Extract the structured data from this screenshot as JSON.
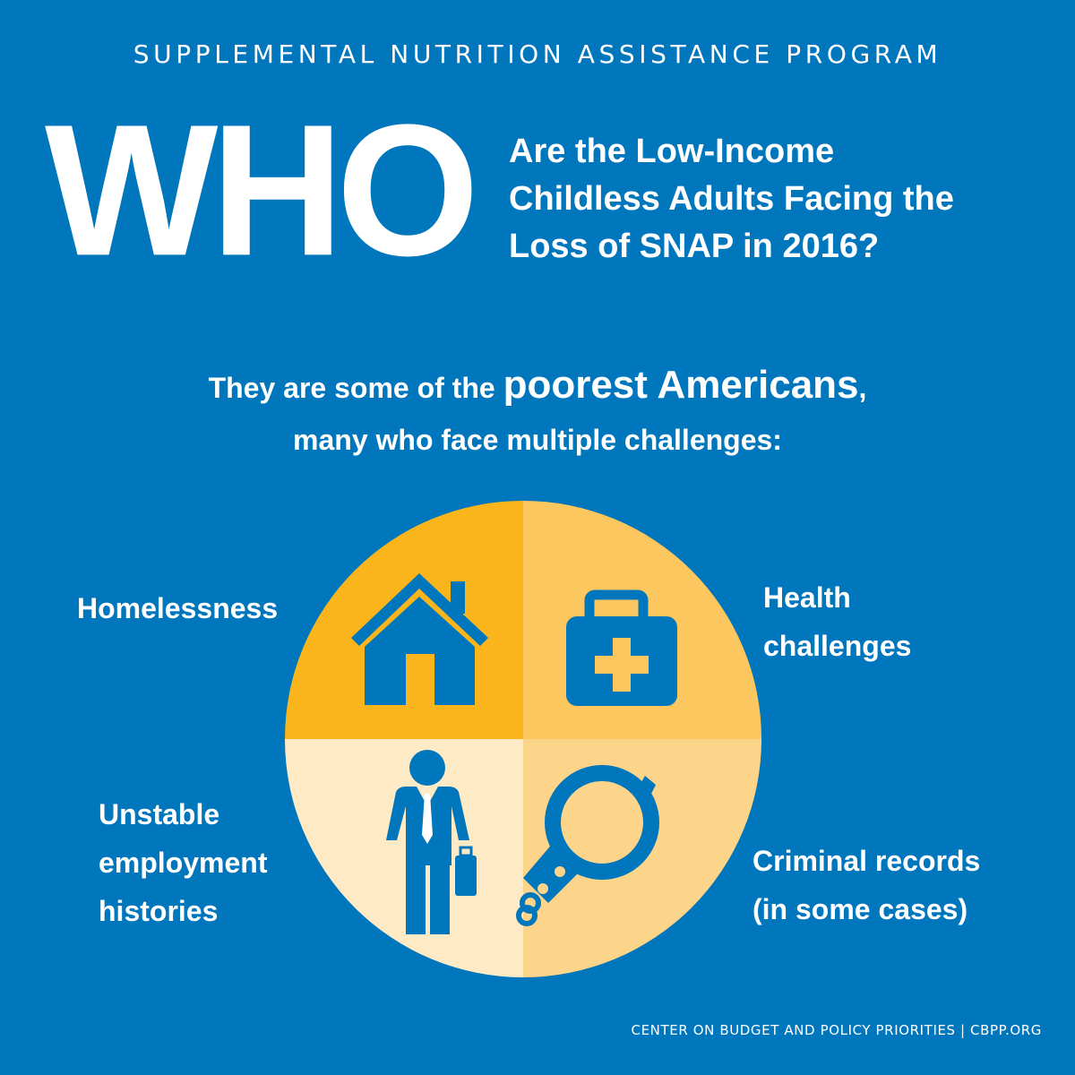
{
  "header": {
    "kicker": "SUPPLEMENTAL NUTRITION ASSISTANCE PROGRAM",
    "big_word": "WHO",
    "question_lines": [
      "Are the Low-Income",
      "Childless Adults Facing the",
      "Loss of SNAP in 2016?"
    ]
  },
  "tagline": {
    "part1": "They are some of the ",
    "emphasis": "poorest Americans",
    "part2": ",",
    "line2": "many who face multiple challenges:"
  },
  "challenges": {
    "homelessness": [
      "Homelessness"
    ],
    "health": [
      "Health",
      "challenges"
    ],
    "employment": [
      "Unstable",
      "employment",
      "histories"
    ],
    "criminal": [
      "Criminal records",
      "(in some cases)"
    ]
  },
  "footer": {
    "credit": "CENTER ON BUDGET AND POLICY PRIORITIES | CBPP.ORG"
  },
  "colors": {
    "background": "#0076bd",
    "quadrant_top_left": "#f9b51b",
    "quadrant_top_right": "#fdc75f",
    "quadrant_bottom_left": "#ffeac6",
    "quadrant_bottom_right": "#fdd58a",
    "icon": "#0076bd"
  },
  "icons": {
    "top_left": "house-icon",
    "top_right": "first-aid-kit-icon",
    "bottom_left": "businessman-icon",
    "bottom_right": "handcuffs-icon"
  }
}
